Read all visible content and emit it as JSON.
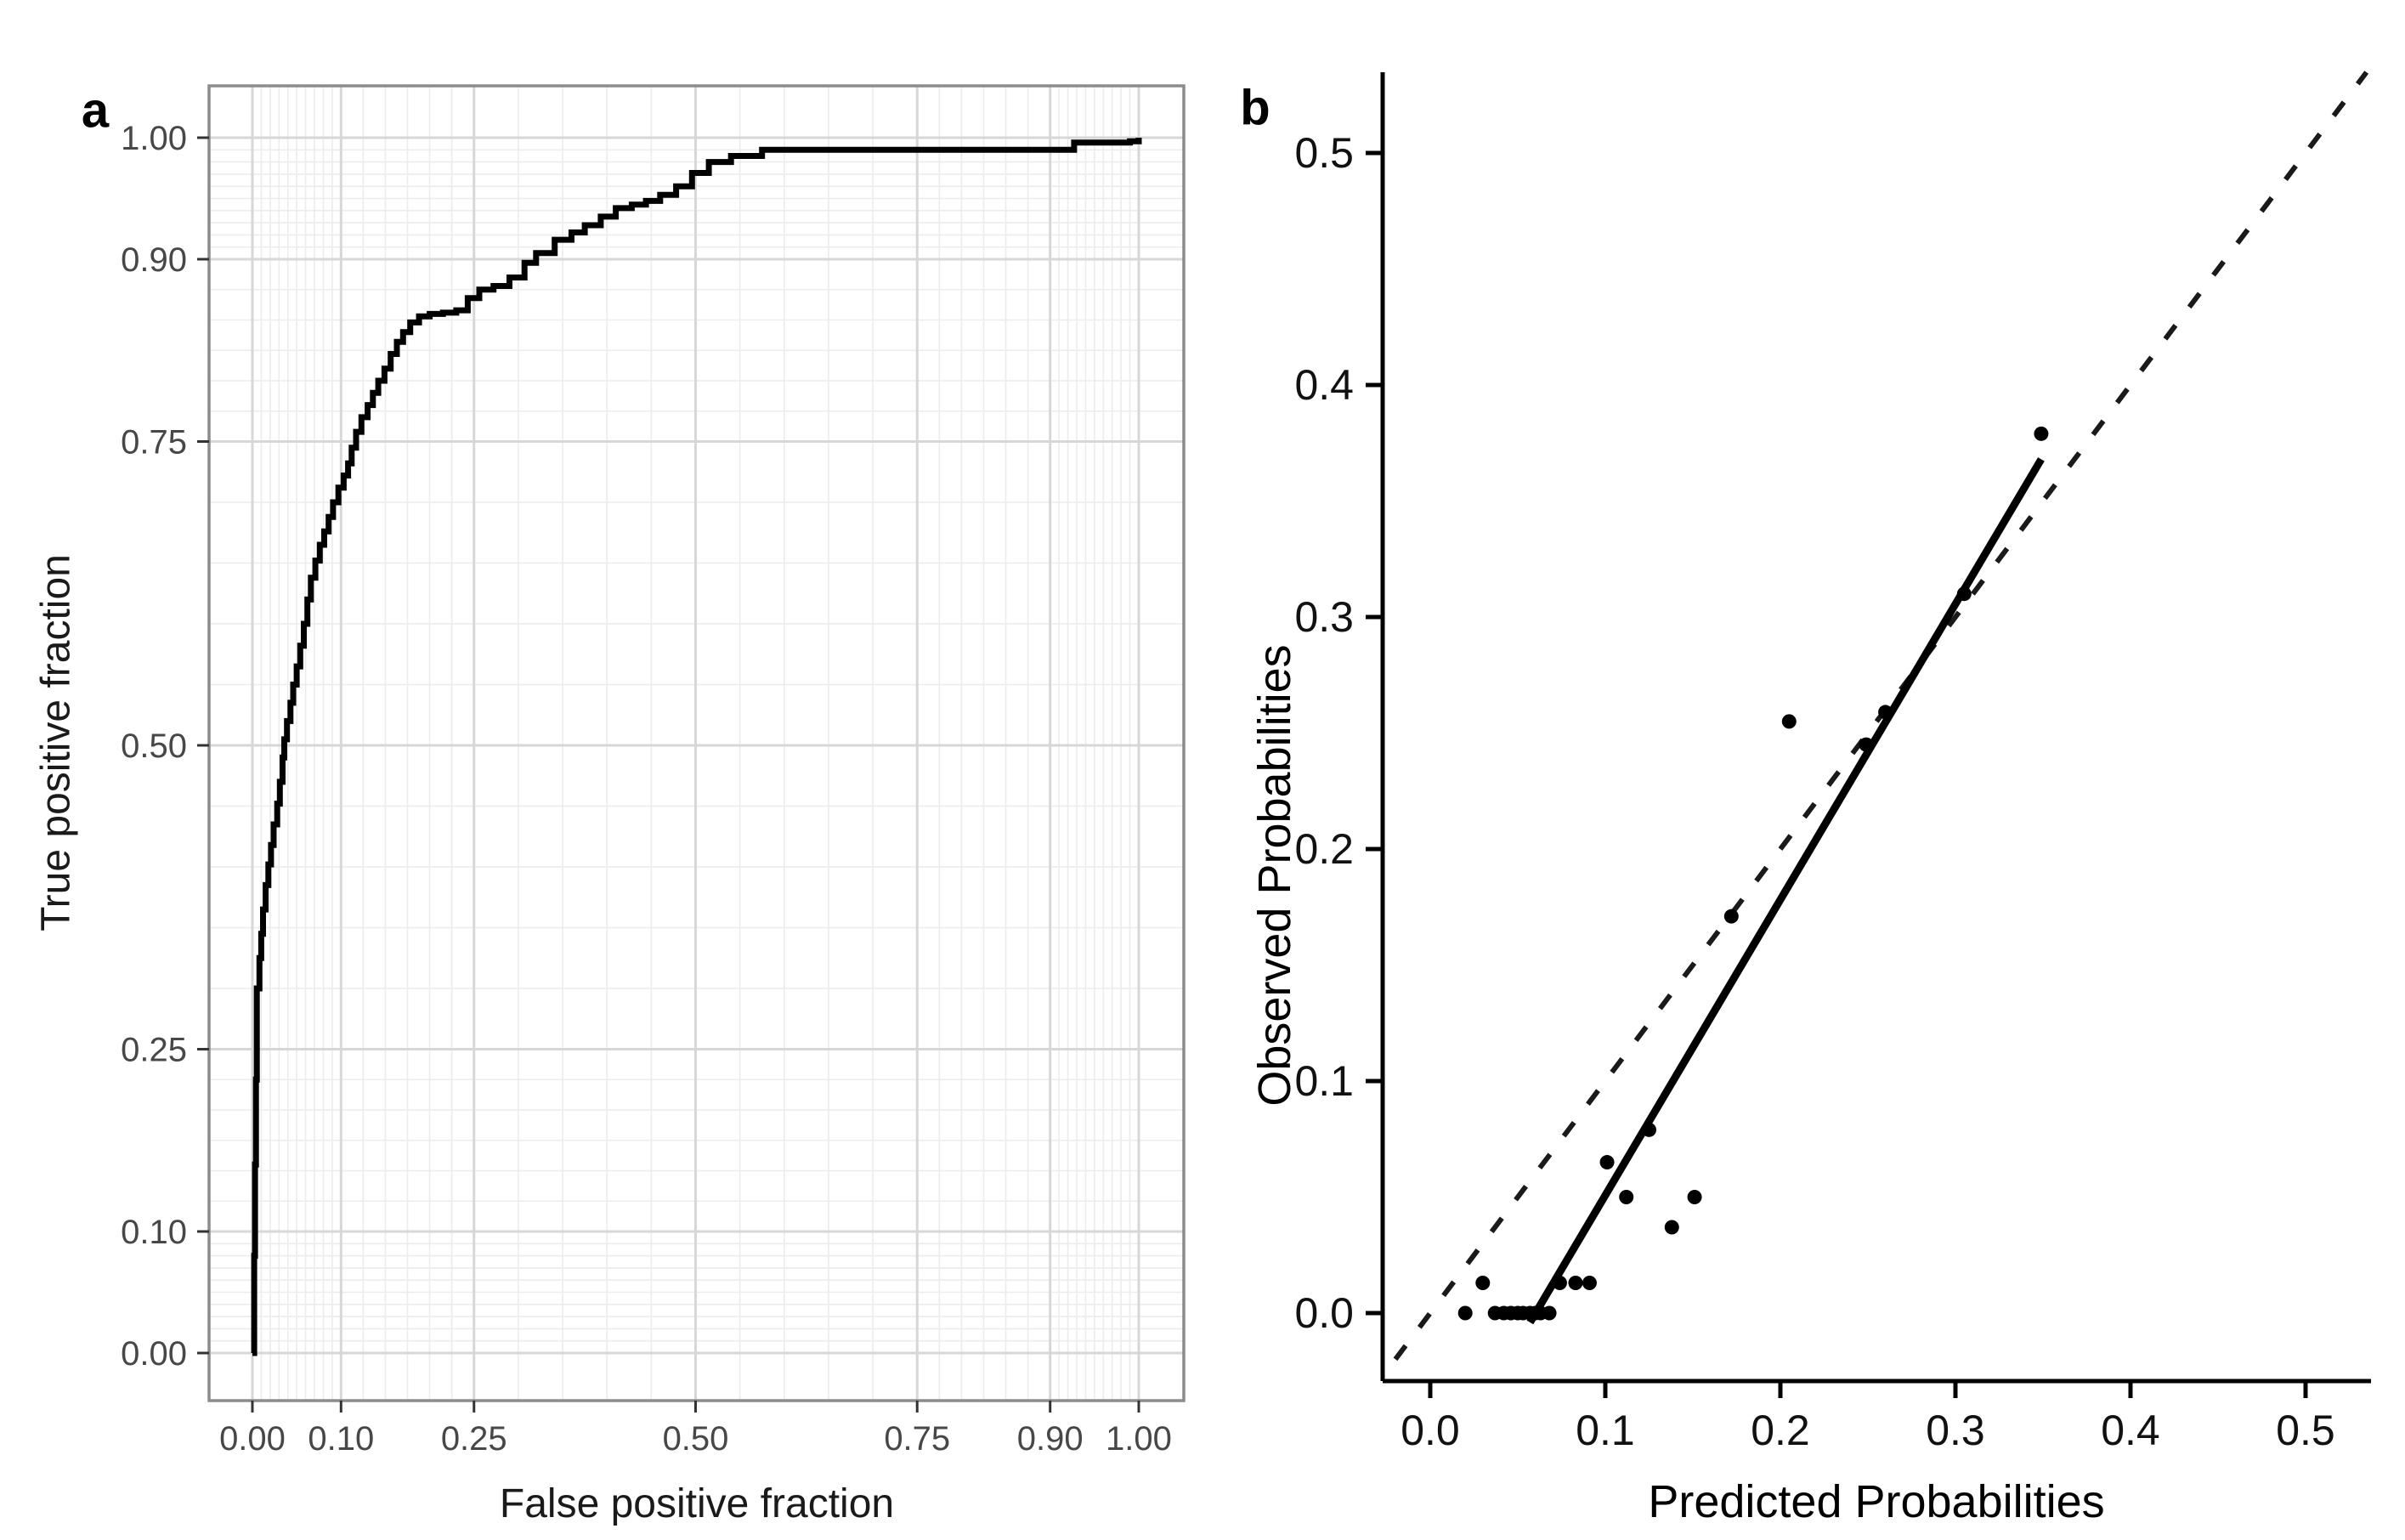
{
  "figure": {
    "background": "#ffffff",
    "panel_labels": {
      "a": "a",
      "b": "b"
    }
  },
  "chart_data": [
    {
      "type": "line",
      "name": "ROC curve",
      "panel": "a",
      "title": "",
      "xlabel": "False positive fraction",
      "ylabel": "True positive fraction",
      "xlim": [
        0,
        1
      ],
      "ylim": [
        0,
        1
      ],
      "grid": true,
      "legend": "none",
      "axis_ticks": {
        "values": [
          0,
          0.1,
          0.25,
          0.5,
          0.75,
          0.9,
          1.0
        ],
        "labels": [
          "0.00",
          "0.10",
          "0.25",
          "0.50",
          "0.75",
          "0.90",
          "1.00"
        ]
      },
      "minor_breaks": [
        0.01,
        0.02,
        0.03,
        0.04,
        0.05,
        0.06,
        0.07,
        0.08,
        0.09,
        0.125,
        0.15,
        0.175,
        0.2,
        0.225,
        0.3,
        0.35,
        0.4,
        0.45,
        0.55,
        0.6,
        0.65,
        0.7,
        0.775,
        0.8,
        0.825,
        0.85,
        0.875,
        0.91,
        0.92,
        0.93,
        0.94,
        0.95,
        0.96,
        0.97,
        0.98,
        0.99
      ],
      "style": {
        "curve_color": "#000000",
        "major_grid_color": "#d7d7d7",
        "minor_grid_color": "#ececec",
        "panel_border_color": "#8c8c8c",
        "tick_color": "#333333",
        "tick_label_color": "#474747"
      },
      "series": [
        {
          "name": "empirical ROC (step curve)",
          "step": true,
          "points": [
            [
              0,
              0
            ],
            [
              0.002,
              0.08
            ],
            [
              0.003,
              0.155
            ],
            [
              0.004,
              0.225
            ],
            [
              0.005,
              0.3
            ],
            [
              0.008,
              0.325
            ],
            [
              0.01,
              0.345
            ],
            [
              0.012,
              0.365
            ],
            [
              0.015,
              0.385
            ],
            [
              0.018,
              0.402
            ],
            [
              0.021,
              0.418
            ],
            [
              0.024,
              0.435
            ],
            [
              0.028,
              0.452
            ],
            [
              0.031,
              0.47
            ],
            [
              0.034,
              0.49
            ],
            [
              0.036,
              0.505
            ],
            [
              0.039,
              0.52
            ],
            [
              0.043,
              0.535
            ],
            [
              0.046,
              0.55
            ],
            [
              0.05,
              0.565
            ],
            [
              0.054,
              0.582
            ],
            [
              0.058,
              0.6
            ],
            [
              0.062,
              0.62
            ],
            [
              0.066,
              0.638
            ],
            [
              0.071,
              0.652
            ],
            [
              0.076,
              0.665
            ],
            [
              0.081,
              0.676
            ],
            [
              0.086,
              0.688
            ],
            [
              0.091,
              0.7
            ],
            [
              0.097,
              0.712
            ],
            [
              0.103,
              0.722
            ],
            [
              0.108,
              0.732
            ],
            [
              0.112,
              0.745
            ],
            [
              0.117,
              0.758
            ],
            [
              0.123,
              0.77
            ],
            [
              0.13,
              0.78
            ],
            [
              0.136,
              0.79
            ],
            [
              0.142,
              0.8
            ],
            [
              0.149,
              0.81
            ],
            [
              0.156,
              0.822
            ],
            [
              0.163,
              0.832
            ],
            [
              0.17,
              0.84
            ],
            [
              0.178,
              0.848
            ],
            [
              0.188,
              0.853
            ],
            [
              0.2,
              0.855
            ],
            [
              0.215,
              0.856
            ],
            [
              0.23,
              0.858
            ],
            [
              0.243,
              0.868
            ],
            [
              0.256,
              0.875
            ],
            [
              0.272,
              0.878
            ],
            [
              0.29,
              0.885
            ],
            [
              0.307,
              0.897
            ],
            [
              0.32,
              0.905
            ],
            [
              0.341,
              0.916
            ],
            [
              0.36,
              0.922
            ],
            [
              0.375,
              0.928
            ],
            [
              0.393,
              0.935
            ],
            [
              0.41,
              0.942
            ],
            [
              0.428,
              0.945
            ],
            [
              0.444,
              0.948
            ],
            [
              0.46,
              0.953
            ],
            [
              0.478,
              0.96
            ],
            [
              0.496,
              0.971
            ],
            [
              0.515,
              0.98
            ],
            [
              0.54,
              0.985
            ],
            [
              0.575,
              0.99
            ],
            [
              0.92,
              0.99
            ],
            [
              0.927,
              0.996
            ],
            [
              0.99,
              0.997
            ],
            [
              1,
              1
            ]
          ]
        }
      ]
    },
    {
      "type": "scatter",
      "name": "Calibration plot",
      "panel": "b",
      "title": "",
      "xlabel": "Predicted Probabilities",
      "ylabel": "Observed Probabilities",
      "xlim": [
        0,
        0.5
      ],
      "ylim": [
        0,
        0.5
      ],
      "grid": false,
      "legend": "none",
      "axis_ticks": {
        "values": [
          0,
          0.1,
          0.2,
          0.3,
          0.4,
          0.5
        ],
        "labels": [
          "0.0",
          "0.1",
          "0.2",
          "0.3",
          "0.4",
          "0.5"
        ]
      },
      "points": [
        [
          0.02,
          0
        ],
        [
          0.037,
          0
        ],
        [
          0.042,
          0
        ],
        [
          0.046,
          0
        ],
        [
          0.05,
          0
        ],
        [
          0.053,
          0
        ],
        [
          0.057,
          0
        ],
        [
          0.06,
          0
        ],
        [
          0.063,
          0
        ],
        [
          0.068,
          0
        ],
        [
          0.03,
          0.013
        ],
        [
          0.074,
          0.013
        ],
        [
          0.083,
          0.013
        ],
        [
          0.091,
          0.013
        ],
        [
          0.101,
          0.065
        ],
        [
          0.112,
          0.05
        ],
        [
          0.125,
          0.079
        ],
        [
          0.138,
          0.037
        ],
        [
          0.151,
          0.05
        ],
        [
          0.172,
          0.171
        ],
        [
          0.205,
          0.255
        ],
        [
          0.249,
          0.245
        ],
        [
          0.26,
          0.259
        ],
        [
          0.305,
          0.31
        ],
        [
          0.349,
          0.379
        ]
      ],
      "fit_line": {
        "x1": 0.057,
        "y1": -0.004,
        "x2": 0.349,
        "y2": 0.368
      },
      "identity_line": {
        "style": "dashed",
        "slope": 1,
        "intercept": 0
      },
      "style": {
        "point_color": "#000000",
        "fit_line_color": "#000000",
        "identity_line_color": "#1a1a1a",
        "axis_color": "#000000",
        "tick_label_color": "#111111"
      }
    }
  ]
}
